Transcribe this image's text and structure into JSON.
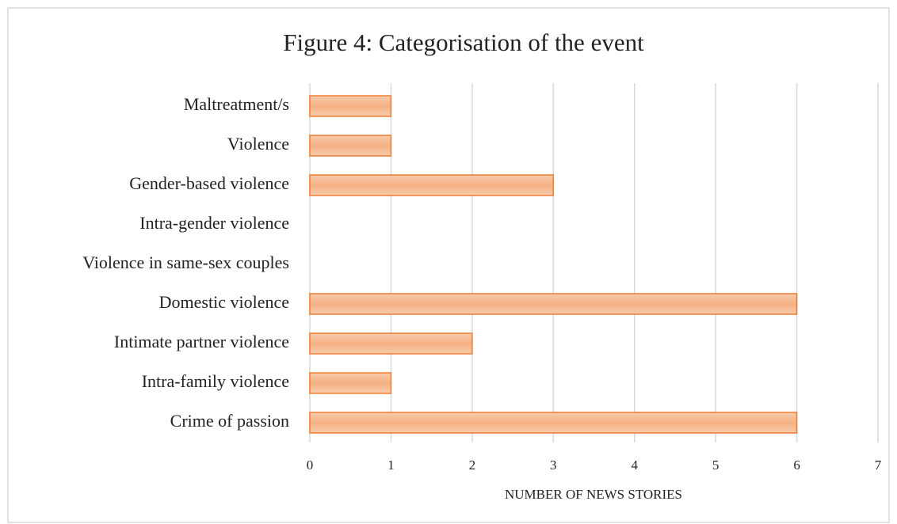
{
  "chart_data": {
    "type": "barh",
    "title": "Figure 4: Categorisation of the event",
    "x_label": "NUMBER OF NEWS STORIES",
    "categories": [
      "Maltreatment/s",
      "Violence",
      "Gender-based violence",
      "Intra-gender violence",
      "Violence in same-sex couples",
      "Domestic violence",
      "Intimate partner violence",
      "Intra-family violence",
      "Crime of passion"
    ],
    "values": [
      1,
      1,
      3,
      0,
      0,
      6,
      2,
      1,
      6
    ],
    "color": "#f4b183",
    "edge_color": "#ed7d31",
    "xlim": [
      0,
      7
    ],
    "xticks": [
      0,
      1,
      2,
      3,
      4,
      5,
      6,
      7
    ],
    "grid": true
  }
}
